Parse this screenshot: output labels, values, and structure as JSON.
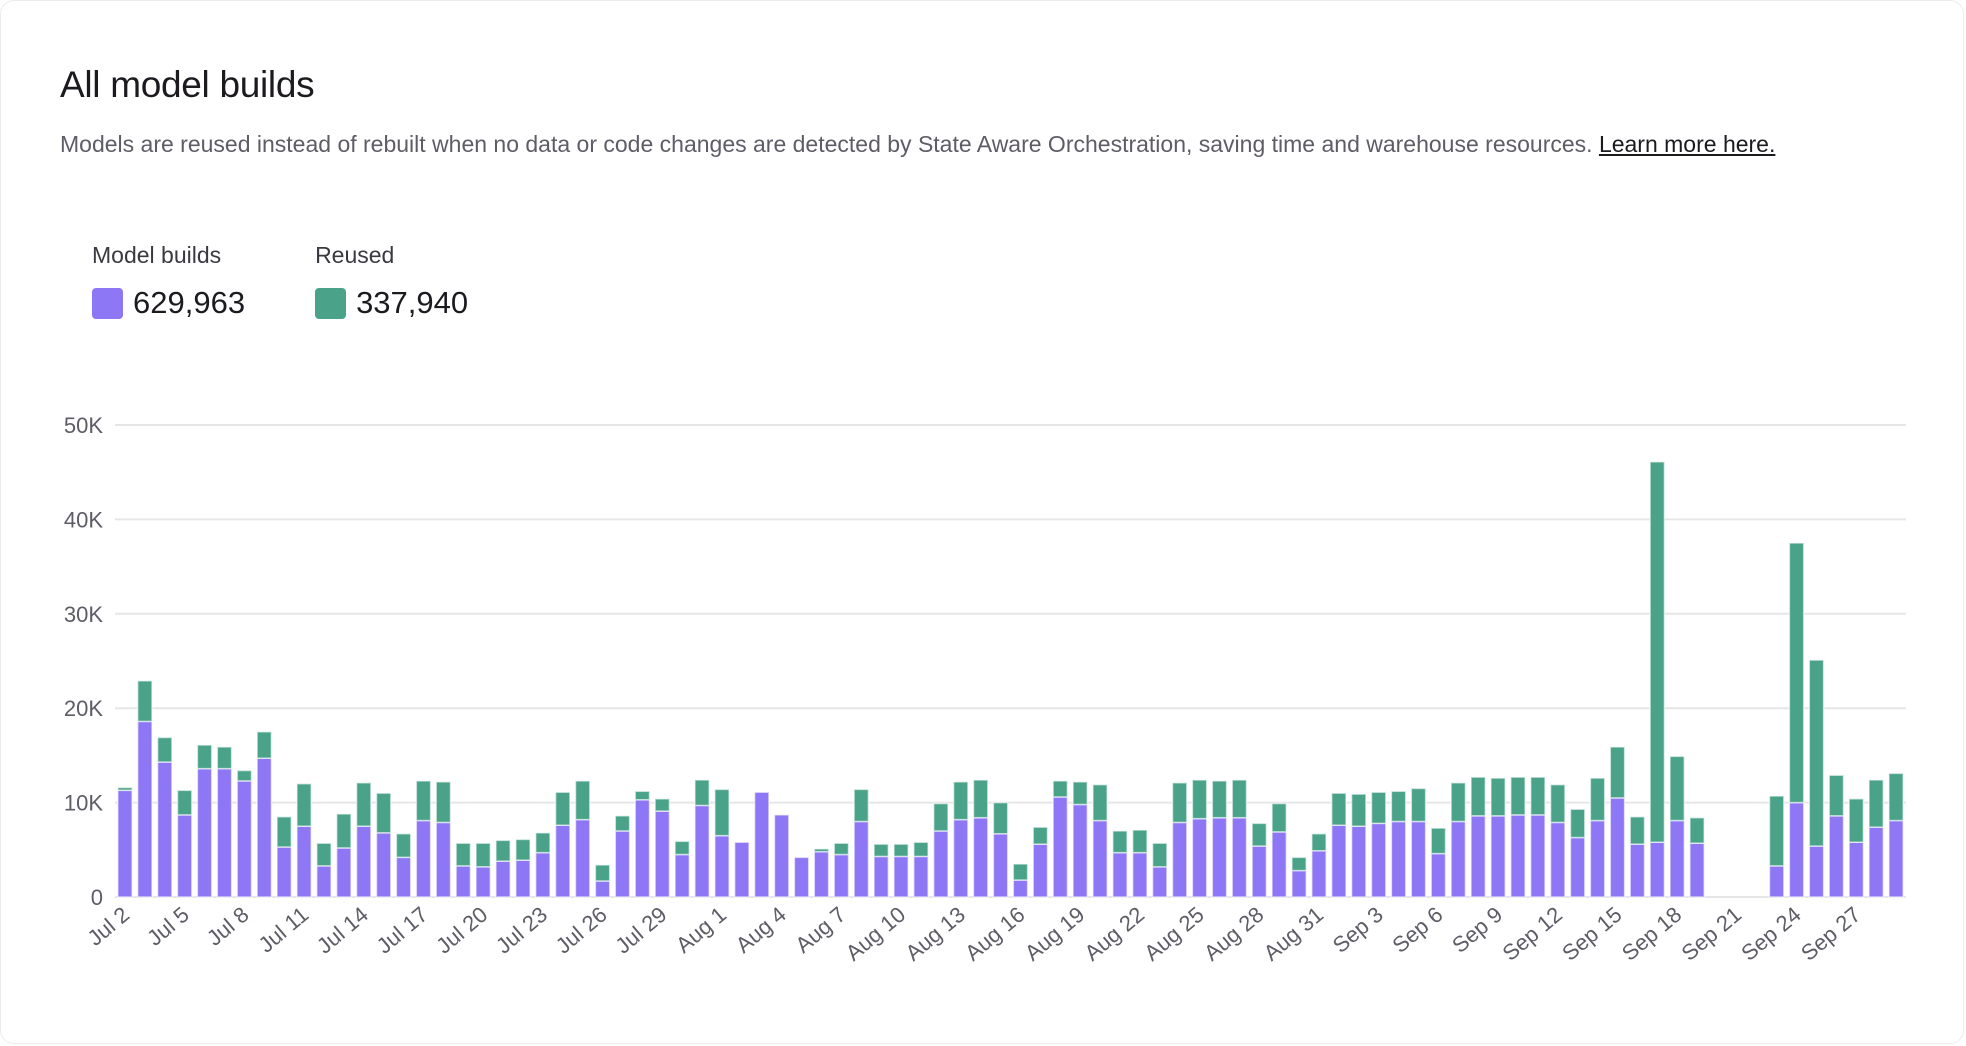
{
  "title": "All model builds",
  "description": "Models are reused instead of rebuilt when no data or code changes are detected by State Aware Orchestration, saving time and warehouse resources. ",
  "learn_more": "Learn more here.",
  "legend": [
    {
      "label": "Model builds",
      "value": "629,963",
      "color": "#8e77f5"
    },
    {
      "label": "Reused",
      "value": "337,940",
      "color": "#4aa389"
    }
  ],
  "chart_data": {
    "type": "bar",
    "stacked": true,
    "grid": true,
    "ylim": [
      0,
      50000
    ],
    "yticks": [
      "0",
      "10K",
      "20K",
      "30K",
      "40K",
      "50K"
    ],
    "ytick_values": [
      0,
      10000,
      20000,
      30000,
      40000,
      50000
    ],
    "categories": [
      "Jul 2",
      "Jul 3",
      "Jul 4",
      "Jul 5",
      "Jul 6",
      "Jul 7",
      "Jul 8",
      "Jul 9",
      "Jul 10",
      "Jul 11",
      "Jul 12",
      "Jul 13",
      "Jul 14",
      "Jul 15",
      "Jul 16",
      "Jul 17",
      "Jul 18",
      "Jul 19",
      "Jul 20",
      "Jul 21",
      "Jul 22",
      "Jul 23",
      "Jul 24",
      "Jul 25",
      "Jul 26",
      "Jul 27",
      "Jul 28",
      "Jul 29",
      "Jul 30",
      "Jul 31",
      "Aug 1",
      "Aug 2",
      "Aug 3",
      "Aug 4",
      "Aug 5",
      "Aug 6",
      "Aug 7",
      "Aug 8",
      "Aug 9",
      "Aug 10",
      "Aug 11",
      "Aug 12",
      "Aug 13",
      "Aug 14",
      "Aug 15",
      "Aug 16",
      "Aug 17",
      "Aug 18",
      "Aug 19",
      "Aug 20",
      "Aug 21",
      "Aug 22",
      "Aug 23",
      "Aug 24",
      "Aug 25",
      "Aug 26",
      "Aug 27",
      "Aug 28",
      "Aug 29",
      "Aug 30",
      "Aug 31",
      "Sep 1",
      "Sep 2",
      "Sep 3",
      "Sep 4",
      "Sep 5",
      "Sep 6",
      "Sep 7",
      "Sep 8",
      "Sep 9",
      "Sep 10",
      "Sep 11",
      "Sep 12",
      "Sep 13",
      "Sep 14",
      "Sep 15",
      "Sep 16",
      "Sep 17",
      "Sep 18",
      "Sep 19",
      "Sep 20",
      "Sep 21",
      "Sep 22",
      "Sep 23",
      "Sep 24",
      "Sep 25",
      "Sep 26",
      "Sep 27",
      "Sep 28",
      "Sep 29"
    ],
    "xtick_labels": [
      "Jul 2",
      "Jul 5",
      "Jul 8",
      "Jul 11",
      "Jul 14",
      "Jul 17",
      "Jul 20",
      "Jul 23",
      "Jul 26",
      "Jul 29",
      "Aug 1",
      "Aug 4",
      "Aug 7",
      "Aug 10",
      "Aug 13",
      "Aug 16",
      "Aug 19",
      "Aug 22",
      "Aug 25",
      "Aug 28",
      "Aug 31",
      "Sep 3",
      "Sep 6",
      "Sep 9",
      "Sep 12",
      "Sep 15",
      "Sep 18",
      "Sep 21",
      "Sep 24",
      "Sep 27"
    ],
    "series": [
      {
        "name": "Model builds",
        "color": "#8e77f5",
        "values": [
          11300,
          18600,
          14300,
          8700,
          13600,
          13600,
          12300,
          14700,
          5300,
          7500,
          3300,
          5200,
          7500,
          6800,
          4200,
          8100,
          7900,
          3300,
          3200,
          3800,
          3900,
          4700,
          7600,
          8200,
          1700,
          7000,
          10300,
          9100,
          4500,
          9700,
          6500,
          5800,
          11100,
          8700,
          4200,
          4800,
          4500,
          8000,
          4300,
          4300,
          4300,
          7000,
          8200,
          8400,
          6700,
          1800,
          5600,
          10600,
          9800,
          8100,
          4700,
          4700,
          3200,
          7900,
          8300,
          8400,
          8400,
          5400,
          6900,
          2800,
          4900,
          7600,
          7500,
          7800,
          8000,
          8000,
          4600,
          8000,
          8600,
          8600,
          8700,
          8700,
          7900,
          6300,
          8100,
          10500,
          5600,
          5800,
          8100,
          5700,
          0,
          0,
          0,
          3300,
          10000,
          5400,
          8600,
          5800,
          7400,
          8100
        ]
      },
      {
        "name": "Reused",
        "color": "#4aa389",
        "values": [
          300,
          4300,
          2600,
          2600,
          2500,
          2300,
          1100,
          2800,
          3200,
          4500,
          2400,
          3600,
          4600,
          4200,
          2500,
          4200,
          4300,
          2400,
          2500,
          2200,
          2200,
          2100,
          3500,
          4100,
          1700,
          1600,
          900,
          1300,
          1400,
          2700,
          4900,
          0,
          0,
          0,
          0,
          300,
          1200,
          3400,
          1300,
          1300,
          1500,
          2900,
          4000,
          4000,
          3300,
          1700,
          1800,
          1700,
          2400,
          3800,
          2300,
          2400,
          2500,
          4200,
          4100,
          3900,
          4000,
          2400,
          3000,
          1400,
          1800,
          3400,
          3400,
          3300,
          3200,
          3500,
          2700,
          4100,
          4100,
          4000,
          4000,
          4000,
          4000,
          3000,
          4500,
          5400,
          2900,
          40300,
          6800,
          2700,
          0,
          0,
          0,
          7400,
          27500,
          19700,
          4300,
          4600,
          5000,
          5000
        ]
      }
    ]
  }
}
